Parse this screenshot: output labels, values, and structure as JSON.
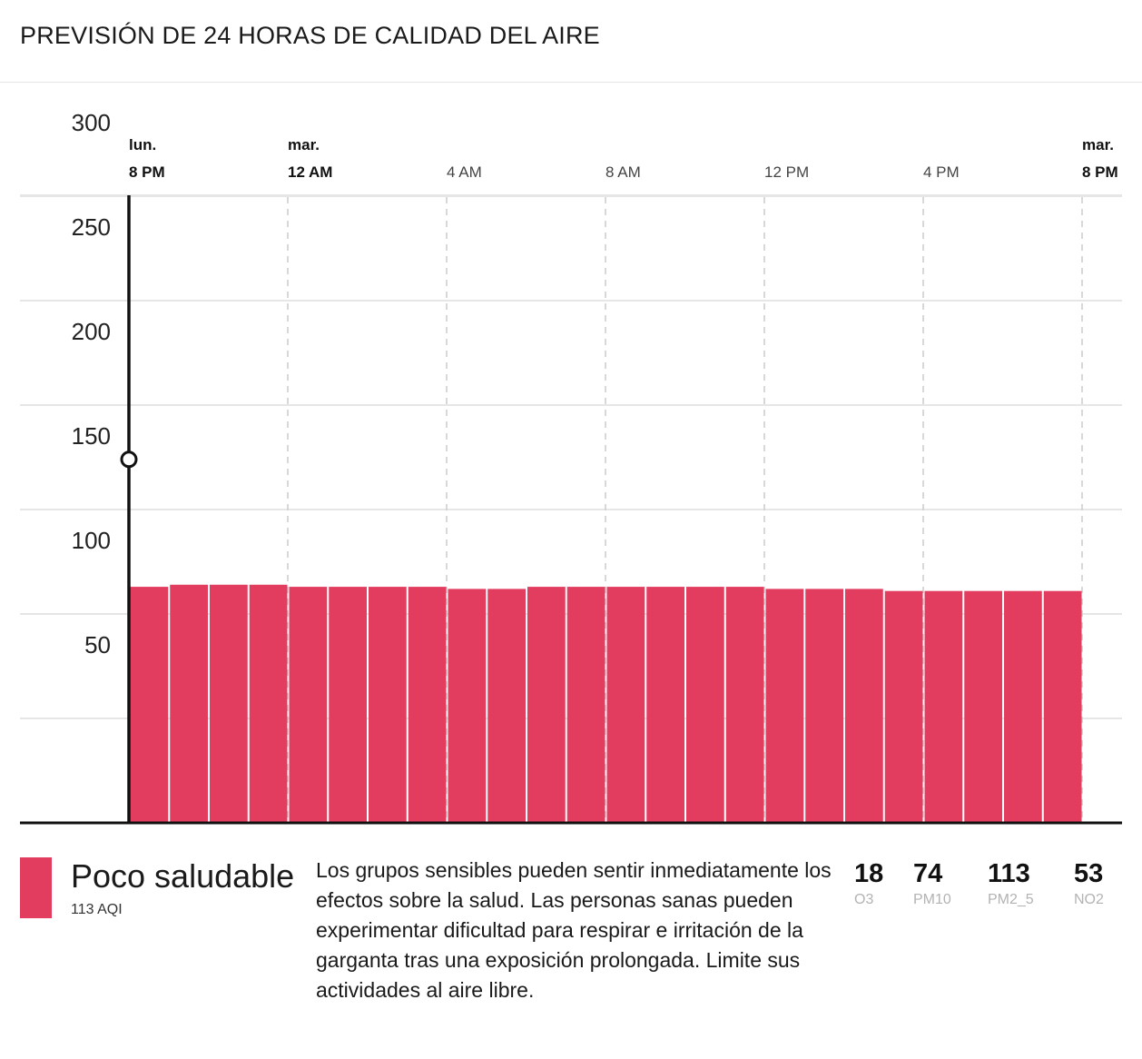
{
  "header": {
    "title": "PREVISIÓN DE 24 HORAS DE CALIDAD DEL AIRE"
  },
  "colors": {
    "bar": "#e23c5f",
    "axis": "#111111",
    "grid": "#e6e6e6",
    "vgrid": "#cccccc"
  },
  "chart_data": {
    "type": "bar",
    "title": "PREVISIÓN DE 24 HORAS DE CALIDAD DEL AIRE",
    "xlabel": "",
    "ylabel": "",
    "ylim": [
      0,
      300
    ],
    "yticks": [
      50,
      100,
      150,
      200,
      250,
      300
    ],
    "x_tick_labels": [
      {
        "hour_index": 0,
        "day": "lun.",
        "time": "8 PM",
        "bold": true
      },
      {
        "hour_index": 4,
        "day": "mar.",
        "time": "12 AM",
        "bold": true
      },
      {
        "hour_index": 8,
        "day": "",
        "time": "4 AM",
        "bold": false
      },
      {
        "hour_index": 12,
        "day": "",
        "time": "8 AM",
        "bold": false
      },
      {
        "hour_index": 16,
        "day": "",
        "time": "12 PM",
        "bold": false
      },
      {
        "hour_index": 20,
        "day": "",
        "time": "4 PM",
        "bold": false
      },
      {
        "hour_index": 24,
        "day": "mar.",
        "time": "8 PM",
        "bold": true
      }
    ],
    "values": [
      113,
      114,
      114,
      114,
      113,
      113,
      113,
      113,
      112,
      112,
      113,
      113,
      113,
      113,
      113,
      113,
      112,
      112,
      112,
      111,
      111,
      111,
      111,
      111
    ],
    "current_marker_value": 174,
    "grid": true
  },
  "status": {
    "level_name": "Poco saludable",
    "aqi_label": "113 AQI",
    "description": "Los grupos sensibles pueden sentir inmediatamente los efectos sobre la salud. Las personas sanas pueden experimentar dificultad para respirar e irritación de la garganta tras una exposición prolongada. Limite sus actividades al aire libre."
  },
  "pollutants": [
    {
      "value": "18",
      "name": "O3"
    },
    {
      "value": "74",
      "name": "PM10"
    },
    {
      "value": "113",
      "name": "PM2_5"
    },
    {
      "value": "53",
      "name": "NO2"
    }
  ]
}
